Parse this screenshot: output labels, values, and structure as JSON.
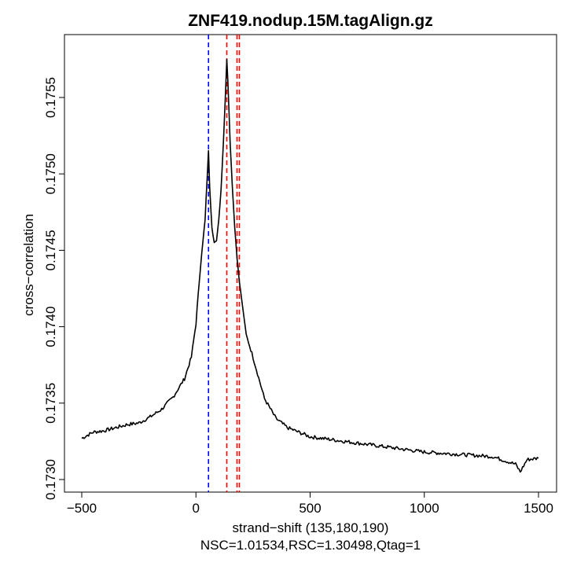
{
  "chart_data": {
    "type": "line",
    "title": "ZNF419.nodup.15M.tagAlign.gz",
    "xlabel": "strand−shift (135,180,190)",
    "subtitle": "NSC=1.01534,RSC=1.30498,Qtag=1",
    "ylabel": "cross−correlation",
    "xlim": [
      -500,
      1500
    ],
    "ylim": [
      0.173,
      0.17555
    ],
    "x_ticks": [
      -500,
      0,
      500,
      1000,
      1500
    ],
    "x_tick_labels": [
      "−500",
      "0",
      "500",
      "1000",
      "1500"
    ],
    "y_ticks": [
      0.173,
      0.1735,
      0.174,
      0.1745,
      0.175,
      0.1755
    ],
    "y_tick_labels": [
      "0.1730",
      "0.1735",
      "0.1740",
      "0.1745",
      "0.1750",
      "0.1755"
    ],
    "vlines": [
      {
        "x": 55,
        "color": "#0000ff",
        "style": "dashed"
      },
      {
        "x": 135,
        "color": "#ff0000",
        "style": "dashed"
      },
      {
        "x": 180,
        "color": "#ff0000",
        "style": "dashed"
      },
      {
        "x": 190,
        "color": "#ff0000",
        "style": "dashed"
      }
    ],
    "series": [
      {
        "name": "cross-correlation",
        "color": "#000000",
        "x": [
          -500,
          -450,
          -400,
          -350,
          -300,
          -250,
          -200,
          -150,
          -100,
          -50,
          -20,
          0,
          20,
          40,
          50,
          55,
          60,
          70,
          80,
          90,
          100,
          110,
          120,
          130,
          135,
          140,
          150,
          160,
          170,
          180,
          190,
          200,
          220,
          250,
          300,
          350,
          400,
          500,
          600,
          700,
          800,
          900,
          1000,
          1100,
          1200,
          1300,
          1400,
          1420,
          1450,
          1500
        ],
        "values": [
          0.17327,
          0.17331,
          0.17332,
          0.17334,
          0.17336,
          0.17337,
          0.17341,
          0.17346,
          0.17354,
          0.17366,
          0.1738,
          0.17402,
          0.1744,
          0.1747,
          0.175,
          0.17515,
          0.17492,
          0.17465,
          0.17455,
          0.17456,
          0.1747,
          0.1749,
          0.1752,
          0.17555,
          0.17575,
          0.1756,
          0.1752,
          0.1749,
          0.17465,
          0.17445,
          0.1743,
          0.17418,
          0.17395,
          0.1738,
          0.17353,
          0.1734,
          0.17334,
          0.17328,
          0.17326,
          0.17324,
          0.17322,
          0.1732,
          0.17318,
          0.17317,
          0.17316,
          0.17315,
          0.1731,
          0.17305,
          0.17313,
          0.17314
        ]
      }
    ]
  }
}
